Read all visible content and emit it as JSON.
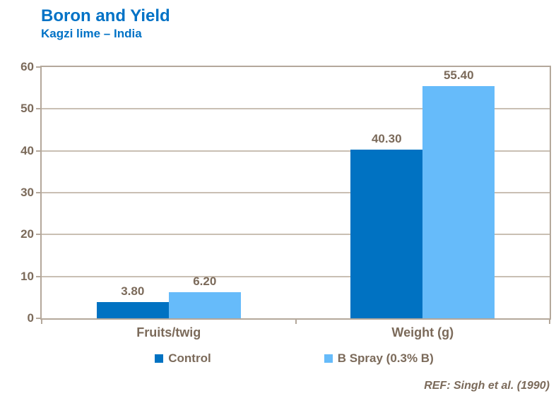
{
  "header": {
    "title": "Boron and Yield",
    "subtitle": "Kagzi lime – India"
  },
  "chart_data": {
    "type": "bar",
    "title": "Boron and Yield",
    "subtitle": "Kagzi lime – India",
    "categories": [
      "Fruits/twig",
      "Weight (g)"
    ],
    "series": [
      {
        "name": "Control",
        "color": "#0072C2",
        "values": [
          3.8,
          40.3
        ],
        "labels": [
          "3.80",
          "40.30"
        ]
      },
      {
        "name": "B Spray (0.3% B)",
        "color": "#66BBFA",
        "values": [
          6.2,
          55.4
        ],
        "labels": [
          "6.20",
          "55.40"
        ]
      }
    ],
    "xlabel": "",
    "ylabel": "",
    "ylim": [
      0,
      60
    ],
    "yticks": [
      0,
      10,
      20,
      30,
      40,
      50,
      60
    ],
    "grid": true,
    "legend_position": "bottom",
    "annotation": "REF: Singh et al. (1990)"
  },
  "footer": {
    "ref": "REF: Singh et al. (1990)"
  },
  "colors": {
    "title_blue": "#0072C6",
    "control_blue": "#0072C2",
    "spray_blue": "#66BBFA",
    "text_brown": "#7B6A5A",
    "axis": "#B4A89B",
    "grid": "#C9BFB3"
  }
}
